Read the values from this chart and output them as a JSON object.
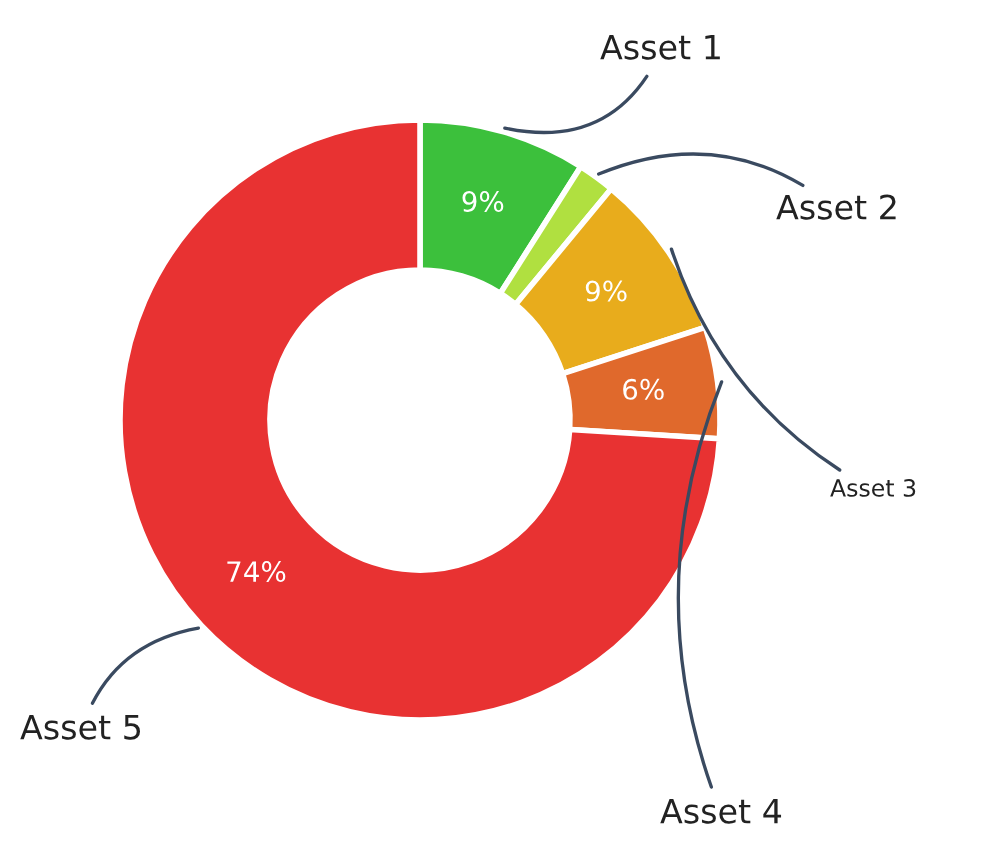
{
  "chart_data": {
    "type": "donut",
    "categories": [
      "Asset 1",
      "Asset 2",
      "Asset 3",
      "Asset 4",
      "Asset 5"
    ],
    "values": [
      9,
      2,
      9,
      6,
      74
    ],
    "value_labels": [
      "9%",
      null,
      "9%",
      "6%",
      "74%"
    ],
    "colors": [
      "#3cc03c",
      "#b0e040",
      "#e8ac1c",
      "#e0692c",
      "#e83232"
    ],
    "legend": false
  }
}
